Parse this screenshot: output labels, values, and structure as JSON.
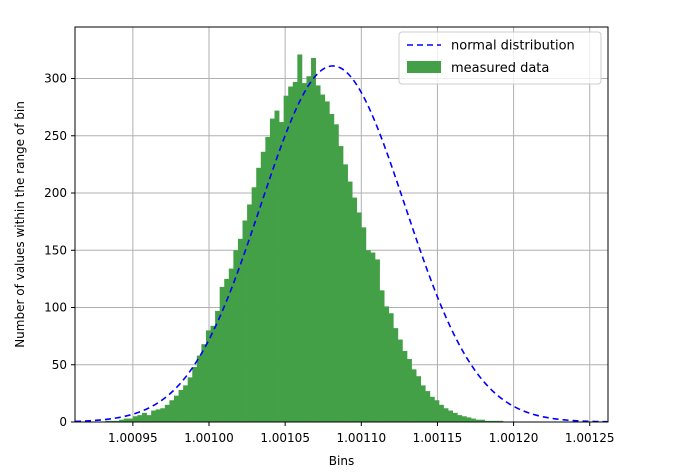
{
  "chart_data": {
    "type": "bar",
    "xlabel": "Bins",
    "ylabel": "Number of values within the range of bin",
    "xlim": [
      1.000912,
      1.001262
    ],
    "ylim": [
      0,
      345
    ],
    "grid": true,
    "legend_position": "top-right",
    "x_ticks": [
      1.00095,
      1.001,
      1.00105,
      1.0011,
      1.00115,
      1.0012,
      1.00125
    ],
    "x_tick_labels": [
      "1.00095",
      "1.00100",
      "1.00105",
      "1.00110",
      "1.00115",
      "1.00120",
      "1.00125"
    ],
    "y_ticks": [
      0,
      50,
      100,
      150,
      200,
      250,
      300
    ],
    "y_tick_labels": [
      "0",
      "50",
      "100",
      "150",
      "200",
      "250",
      "300"
    ],
    "series": [
      {
        "name": "normal distribution",
        "kind": "line",
        "style": "dashed",
        "color": "#0000ff",
        "mean": 1.0010813,
        "sigma": 4.75e-05,
        "peak": 311
      },
      {
        "name": "measured data",
        "kind": "histogram",
        "color": "#43a047",
        "bin_start": 1.000932,
        "bin_width": 3e-06,
        "values": [
          1,
          1,
          1,
          2,
          3,
          3,
          5,
          6,
          8,
          6,
          10,
          11,
          12,
          15,
          19,
          23,
          28,
          32,
          39,
          48,
          58,
          68,
          80,
          84,
          97,
          118,
          125,
          134,
          150,
          160,
          176,
          190,
          205,
          222,
          236,
          249,
          265,
          272,
          262,
          285,
          293,
          297,
          321,
          296,
          302,
          318,
          294,
          286,
          280,
          269,
          260,
          241,
          225,
          210,
          196,
          183,
          170,
          150,
          148,
          142,
          115,
          101,
          95,
          82,
          72,
          62,
          55,
          46,
          40,
          32,
          27,
          22,
          19,
          15,
          12,
          10,
          8,
          6,
          5,
          4,
          3,
          2,
          2,
          1,
          1,
          1,
          1
        ]
      }
    ]
  }
}
